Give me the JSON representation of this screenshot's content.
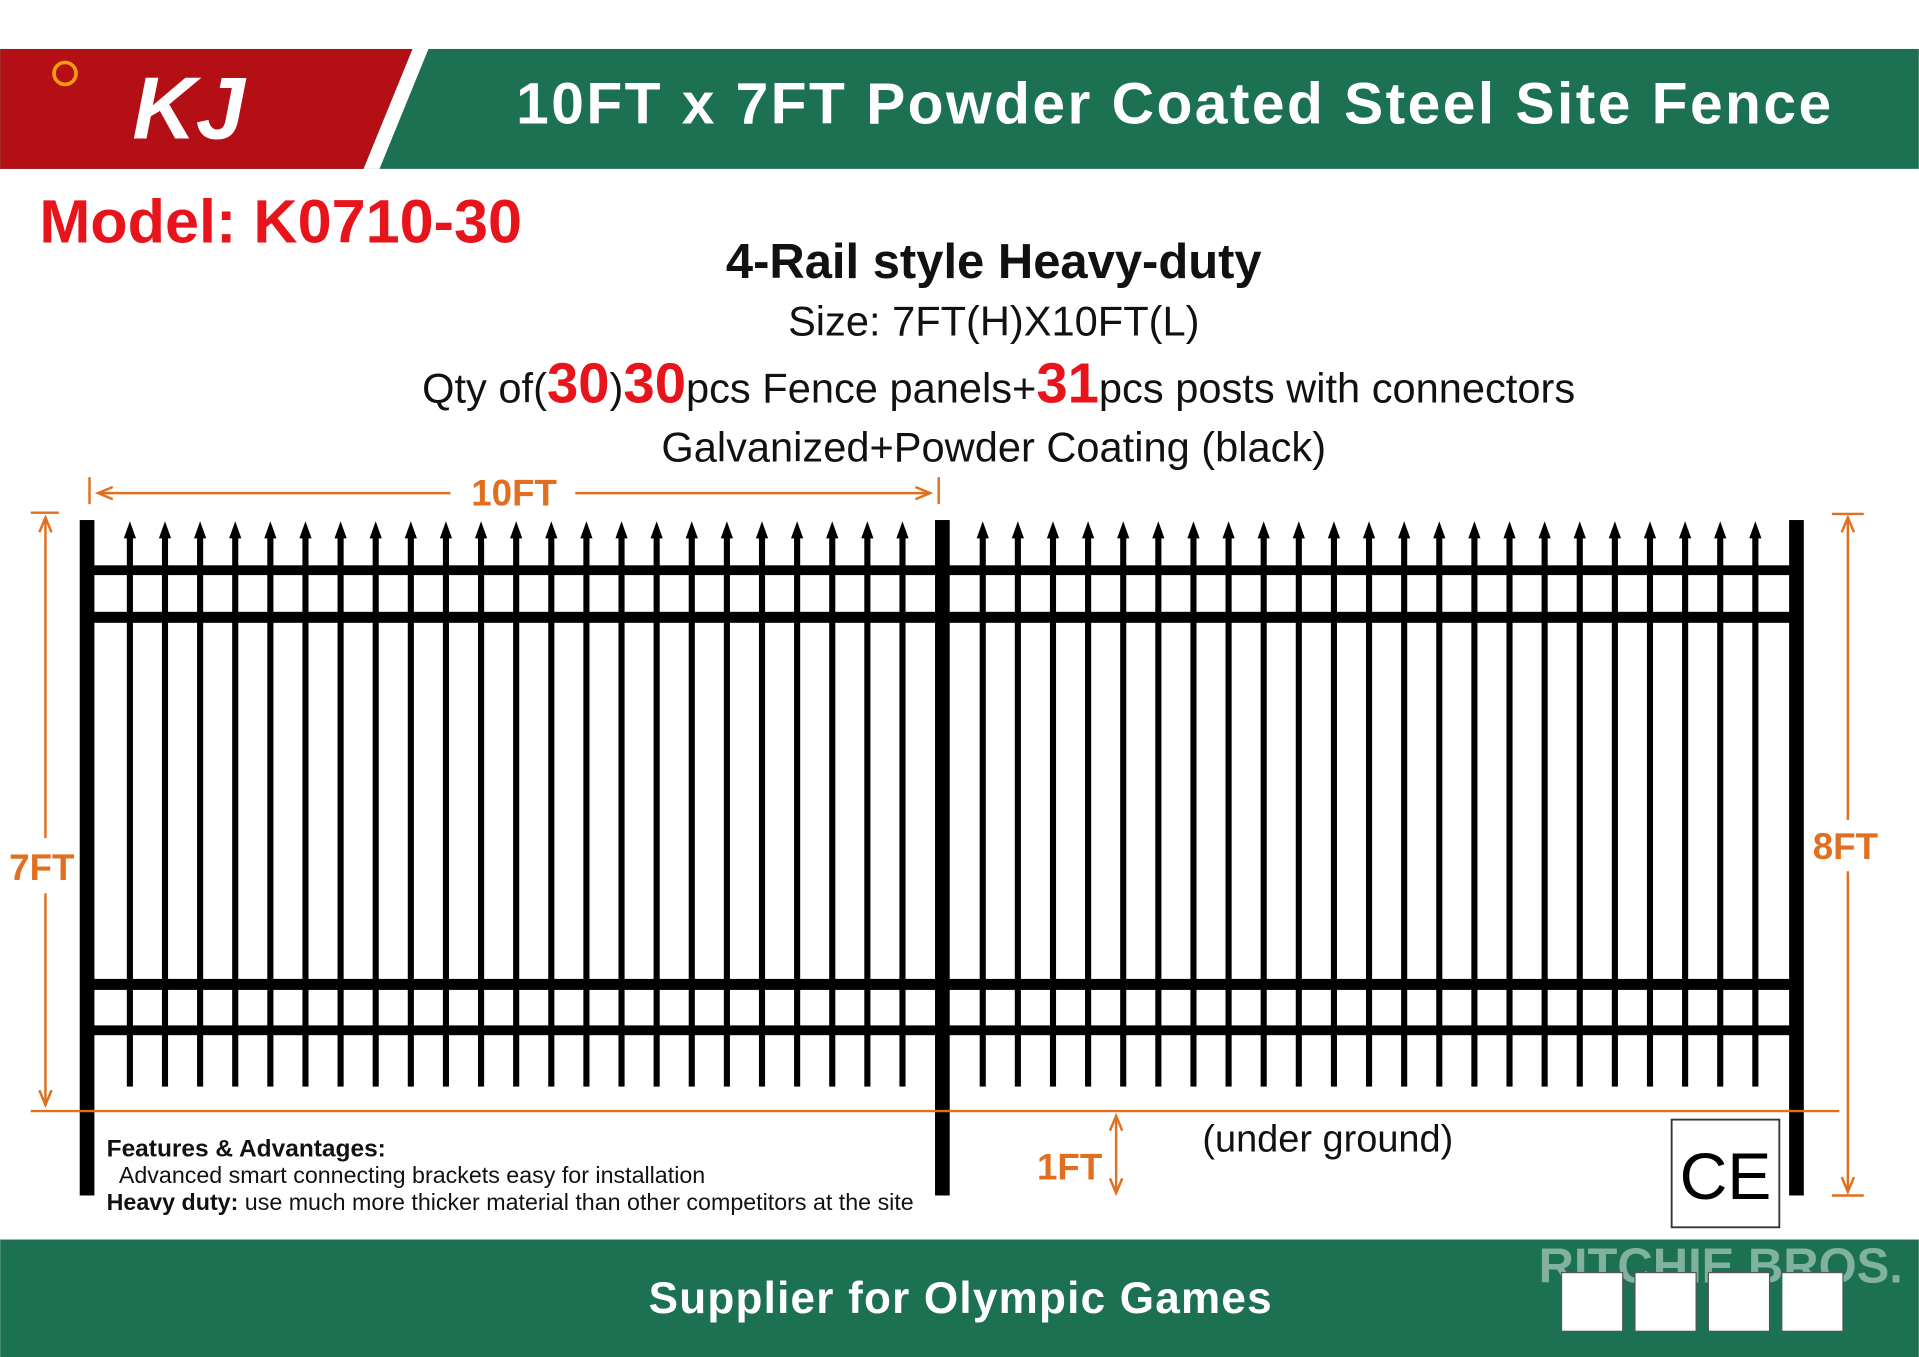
{
  "header": {
    "brand": "KJ",
    "title": "10FT x 7FT Powder Coated Steel Site Fence"
  },
  "model": "Model: K0710-30",
  "subtitle": "4-Rail style Heavy-duty",
  "size": "Size: 7FT(H)X10FT(L)",
  "quantity": {
    "prefix": "Qty of(",
    "count_a": "30",
    "close": ")",
    "count_b": "30",
    "panels": "pcs Fence panels+",
    "posts_count": "31",
    "posts": "pcs posts with connectors"
  },
  "coating": "Galvanized+Powder Coating (black)",
  "dimensions": {
    "length": "10FT",
    "height": "7FT",
    "post_height": "8FT",
    "underground_depth": "1FT",
    "underground": "(under ground)"
  },
  "features": {
    "title": "Features & Advantages:",
    "item1": "Advanced smart connecting brackets easy for installation",
    "item2_label": "Heavy duty:",
    "item2": " use much more thicker material than other competitors at the site"
  },
  "certification": "CE",
  "footer": "Supplier for  Olympic Games",
  "watermark": "RITCHIE BROS."
}
